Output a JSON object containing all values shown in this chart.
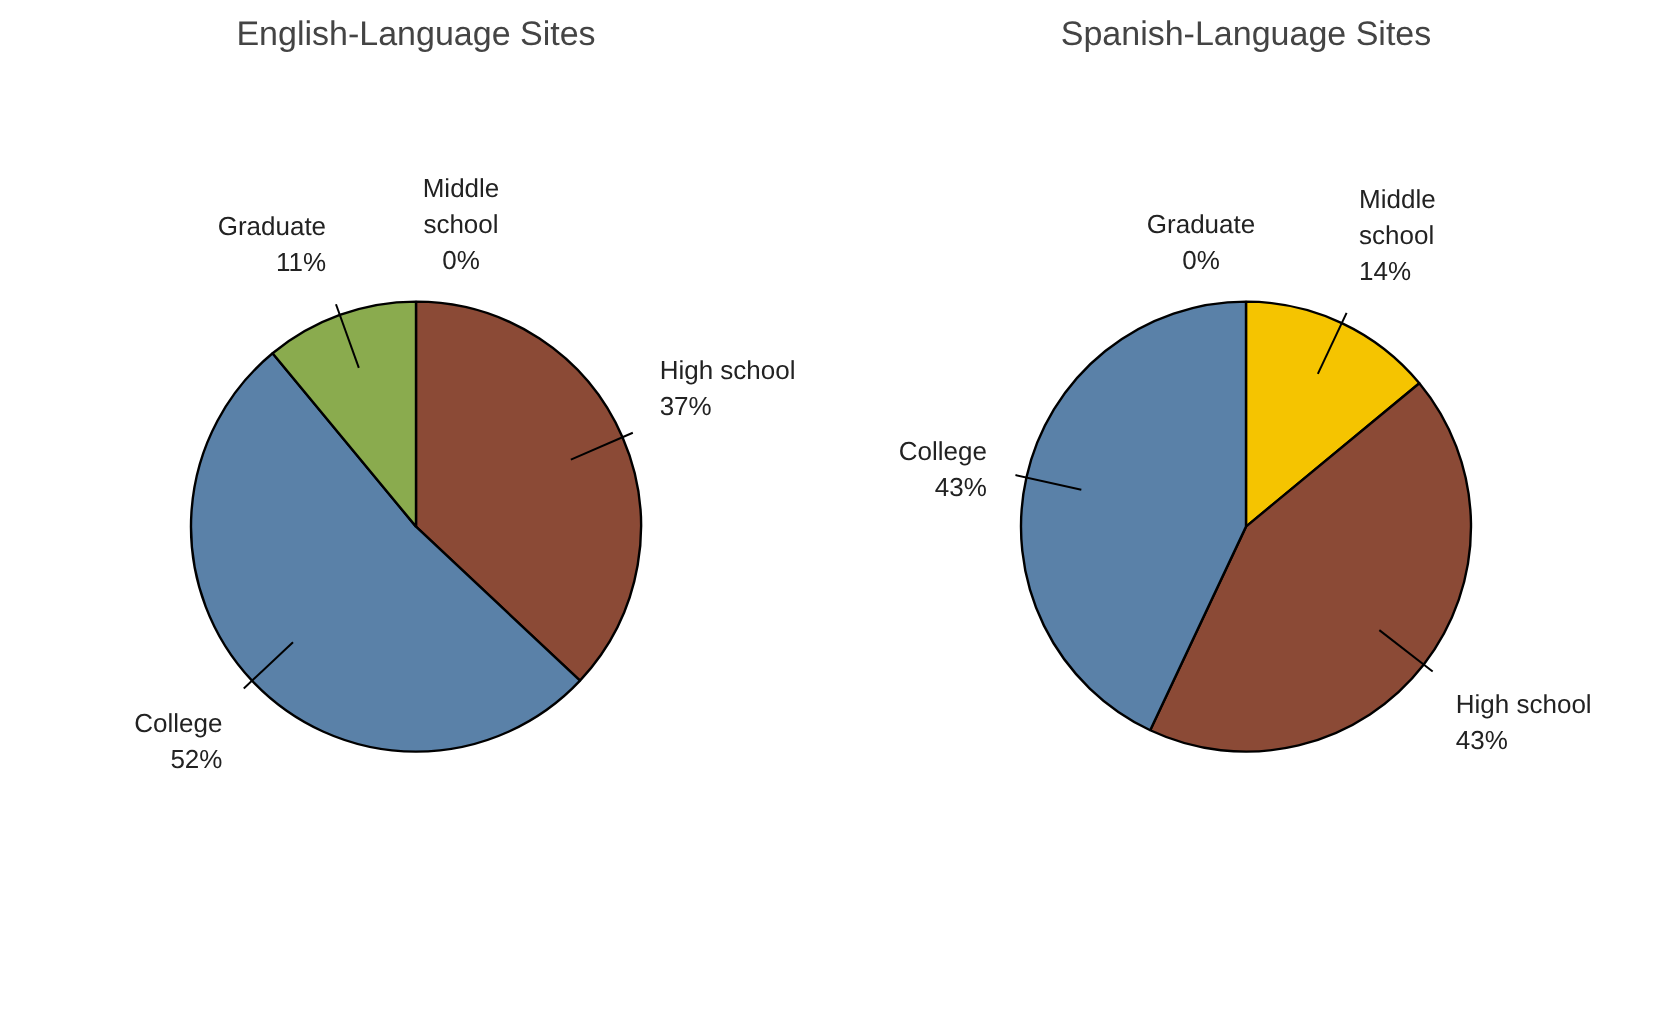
{
  "chart_data": [
    {
      "type": "pie",
      "title": "English-Language Sites",
      "categories": [
        "Middle school",
        "High school",
        "College",
        "Graduate"
      ],
      "values": [
        0,
        37,
        52,
        11
      ],
      "value_labels": [
        "0%",
        "37%",
        "52%",
        "11%"
      ],
      "colors": [
        "#f5c400",
        "#8b4a36",
        "#5a81a8",
        "#8aab4e"
      ],
      "legend": false
    },
    {
      "type": "pie",
      "title": "Spanish-Language Sites",
      "categories": [
        "Middle school",
        "High school",
        "College",
        "Graduate"
      ],
      "values": [
        14,
        43,
        43,
        0
      ],
      "value_labels": [
        "14%",
        "43%",
        "43%",
        "0%"
      ],
      "colors": [
        "#f5c400",
        "#8b4a36",
        "#5a81a8",
        "#8aab4e"
      ],
      "legend": false
    }
  ]
}
